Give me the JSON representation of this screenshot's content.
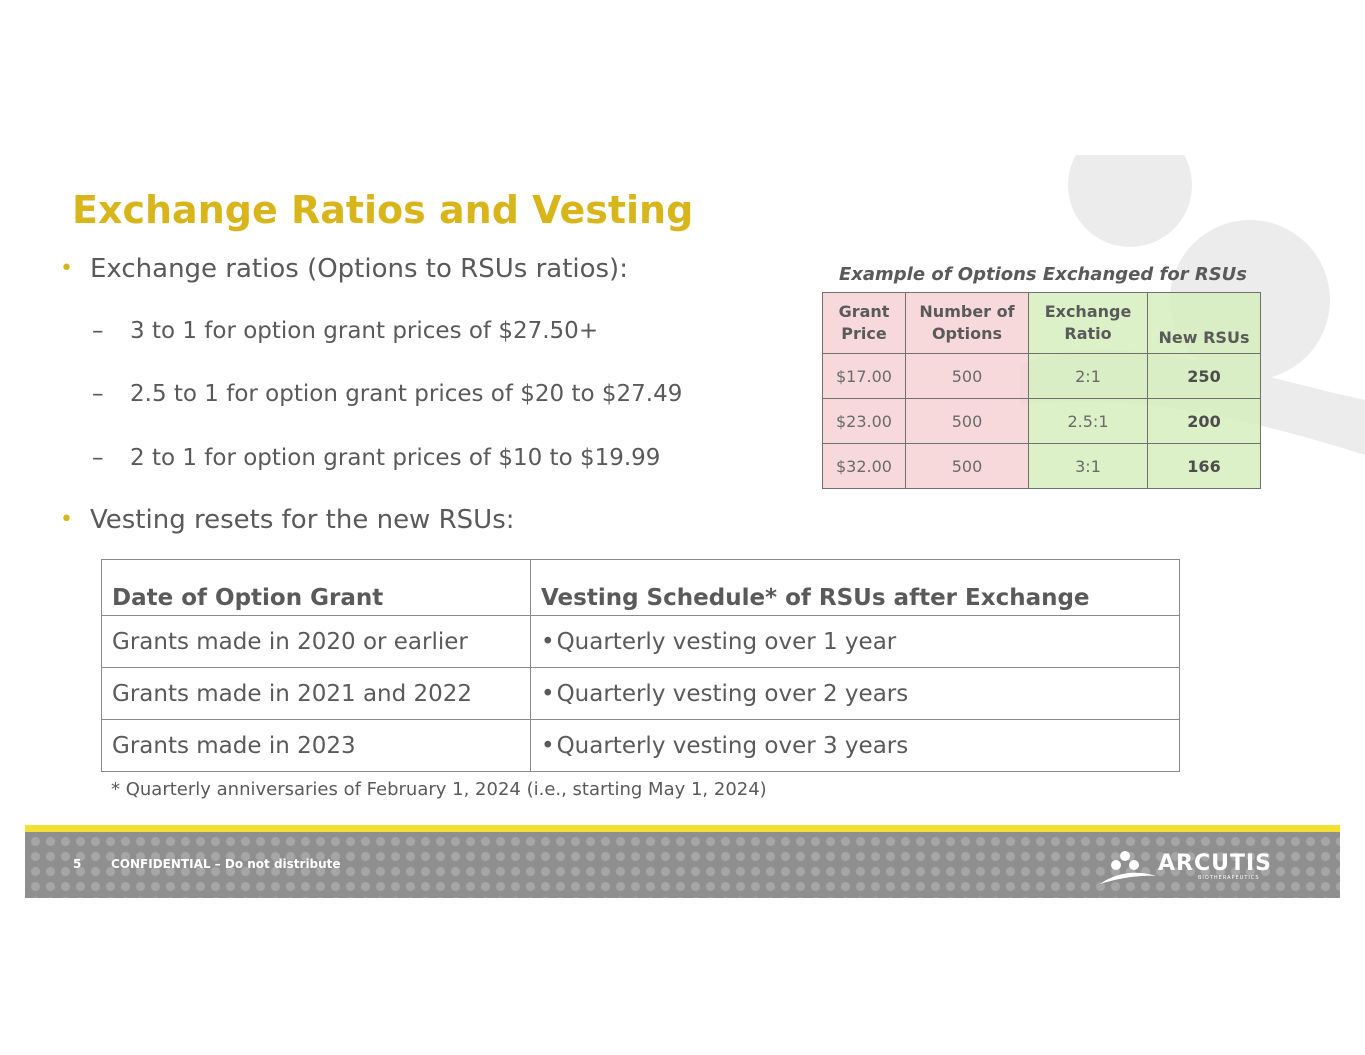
{
  "slide": {
    "title": "Exchange Ratios and Vesting",
    "bullet1": "Exchange ratios (Options to RSUs ratios):",
    "sub_items": [
      "3 to 1 for option grant prices of $27.50+",
      "2.5 to 1 for option grant prices of $20 to $27.49",
      "2 to 1 for option grant prices of $10 to $19.99"
    ],
    "bullet2": "Vesting resets for the new RSUs:"
  },
  "example_table": {
    "title": "Example of Options Exchanged for RSUs",
    "headers": {
      "grant_price_line1": "Grant",
      "grant_price_line2": "Price",
      "options_line1": "Number of",
      "options_line2": "Options",
      "ratio_line1": "Exchange",
      "ratio_line2": "Ratio",
      "new_rsus": "New RSUs"
    },
    "rows": [
      {
        "price": "$17.00",
        "options": "500",
        "ratio": "2:1",
        "rsus": "250"
      },
      {
        "price": "$23.00",
        "options": "500",
        "ratio": "2.5:1",
        "rsus": "200"
      },
      {
        "price": "$32.00",
        "options": "500",
        "ratio": "3:1",
        "rsus": "166"
      }
    ]
  },
  "vesting_table": {
    "header_date": "Date of Option Grant",
    "header_schedule": "Vesting Schedule* of RSUs after Exchange",
    "bullet_char": "•",
    "rows": [
      {
        "date": "Grants made in 2020 or earlier",
        "schedule": "Quarterly vesting over 1 year"
      },
      {
        "date": "Grants made in 2021 and 2022",
        "schedule": "Quarterly vesting over 2 years"
      },
      {
        "date": "Grants made in 2023",
        "schedule": "Quarterly vesting over 3 years"
      }
    ]
  },
  "footnote": "* Quarterly anniversaries of February 1, 2024 (i.e., starting May 1, 2024)",
  "footer": {
    "page_number": "5",
    "confidential": "CONFIDENTIAL – Do not distribute",
    "logo_text": "ARCUTIS",
    "logo_subtext": "BIOTHERAPEUTICS"
  },
  "colors": {
    "title": "#d9b51c",
    "footer_line": "#f2e133",
    "pink_cells": "#f6d2d6",
    "green_cells": "#d7eebe"
  }
}
